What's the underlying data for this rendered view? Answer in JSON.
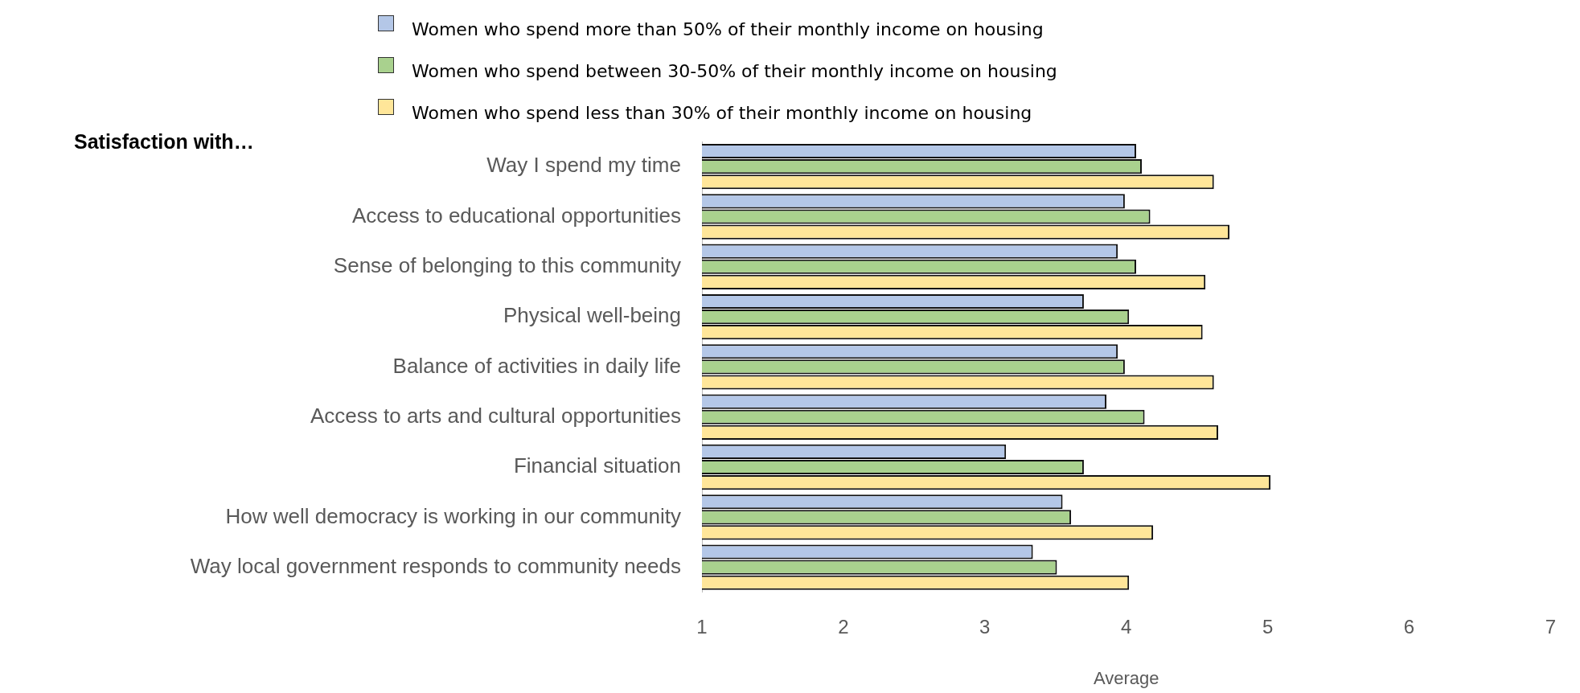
{
  "chart_data": {
    "type": "bar",
    "orientation": "horizontal",
    "ylabel": "Satisfaction with…",
    "xlabel": "Average",
    "categories": [
      "Way I spend my time",
      "Access to educational opportunities",
      "Sense of belonging to this community",
      "Physical well-being",
      "Balance of activities in daily life",
      "Access to arts and cultural opportunities",
      "Financial situation",
      "How well democracy is working in our community",
      "Way local government responds to community needs"
    ],
    "series": [
      {
        "name": "Women who spend more than 50% of their monthly income on housing",
        "color": "#b4c7e7",
        "values": [
          4.07,
          3.99,
          3.94,
          3.7,
          3.94,
          3.86,
          3.15,
          3.55,
          3.34
        ]
      },
      {
        "name": "Women who spend between 30-50% of their monthly income on housing",
        "color": "#a9d18e",
        "values": [
          4.11,
          4.17,
          4.07,
          4.02,
          3.99,
          4.13,
          3.7,
          3.61,
          3.51
        ]
      },
      {
        "name": "Women who spend less than 30% of their monthly income on housing",
        "color": "#ffe699",
        "values": [
          4.62,
          4.73,
          4.56,
          4.54,
          4.62,
          4.65,
          5.02,
          4.19,
          4.02
        ]
      }
    ],
    "xlim": [
      1,
      7
    ],
    "xticks": [
      1,
      2,
      3,
      4,
      5,
      6,
      7
    ],
    "grid": false,
    "legend": "top"
  }
}
